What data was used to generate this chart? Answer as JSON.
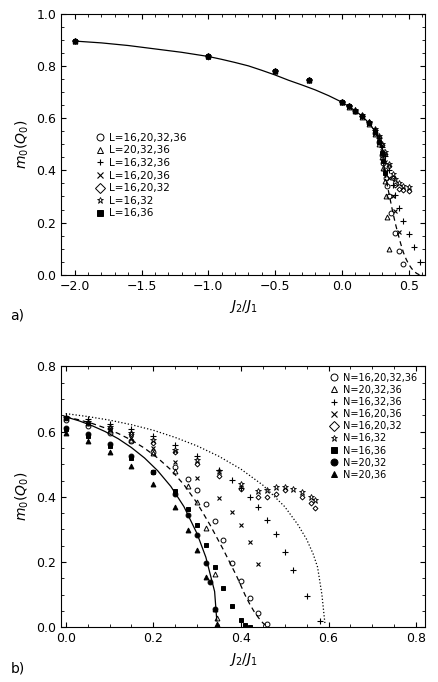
{
  "panel_a": {
    "xlabel": "J_2/J_1",
    "ylabel": "m_0(Q_0)",
    "xlim": [
      -2.1,
      0.62
    ],
    "ylim": [
      0.0,
      1.0
    ],
    "xticks": [
      -2.0,
      -1.5,
      -1.0,
      -0.5,
      0.0,
      0.5
    ],
    "yticks": [
      0.0,
      0.2,
      0.4,
      0.6,
      0.8,
      1.0
    ],
    "legend_entries": [
      {
        "label": "L=16,20,32,36",
        "marker": "o",
        "filled": false
      },
      {
        "label": "L=20,32,36",
        "marker": "^",
        "filled": false
      },
      {
        "label": "L=16,32,36",
        "marker": "+",
        "filled": false
      },
      {
        "label": "L=16,20,36",
        "marker": "x",
        "filled": false
      },
      {
        "label": "L=16,20,32",
        "marker": "D",
        "filled": false
      },
      {
        "label": "L=16,32",
        "marker": "*",
        "filled": false
      },
      {
        "label": "L=16,36",
        "marker": "s",
        "filled": true
      }
    ],
    "curve_solid_x": [
      -2.0,
      -1.8,
      -1.6,
      -1.4,
      -1.2,
      -1.0,
      -0.9,
      -0.8,
      -0.7,
      -0.6,
      -0.5,
      -0.4,
      -0.3,
      -0.2,
      -0.1,
      0.0,
      0.05,
      0.1,
      0.15,
      0.2,
      0.25,
      0.28,
      0.3,
      0.32
    ],
    "curve_solid_y": [
      0.895,
      0.888,
      0.878,
      0.865,
      0.852,
      0.836,
      0.825,
      0.813,
      0.8,
      0.783,
      0.765,
      0.745,
      0.727,
      0.708,
      0.686,
      0.661,
      0.645,
      0.628,
      0.608,
      0.582,
      0.548,
      0.515,
      0.48,
      0.39
    ],
    "curve_dashed_x": [
      0.32,
      0.34,
      0.36,
      0.38,
      0.4,
      0.42,
      0.44,
      0.46,
      0.48,
      0.5,
      0.52,
      0.54,
      0.56,
      0.58
    ],
    "curve_dashed_y": [
      0.39,
      0.34,
      0.29,
      0.24,
      0.195,
      0.155,
      0.118,
      0.085,
      0.06,
      0.04,
      0.025,
      0.013,
      0.005,
      0.0
    ],
    "scatter_sets": [
      {
        "marker": "o",
        "filled": false,
        "ms": 3.5,
        "x": [
          -2.0,
          -1.0,
          -0.5,
          -0.25,
          0.0,
          0.05,
          0.1,
          0.15,
          0.2,
          0.25,
          0.28,
          0.3,
          0.31,
          0.32,
          0.33,
          0.34,
          0.35,
          0.37,
          0.4,
          0.43,
          0.46
        ],
        "y": [
          0.895,
          0.836,
          0.78,
          0.745,
          0.662,
          0.645,
          0.627,
          0.607,
          0.58,
          0.543,
          0.508,
          0.46,
          0.43,
          0.4,
          0.37,
          0.34,
          0.3,
          0.235,
          0.16,
          0.09,
          0.04
        ]
      },
      {
        "marker": "^",
        "filled": false,
        "ms": 3.5,
        "x": [
          -2.0,
          -1.0,
          -0.5,
          -0.25,
          0.0,
          0.05,
          0.1,
          0.15,
          0.2,
          0.25,
          0.28,
          0.3,
          0.31,
          0.32,
          0.33,
          0.34,
          0.35
        ],
        "y": [
          0.895,
          0.836,
          0.779,
          0.745,
          0.661,
          0.644,
          0.626,
          0.605,
          0.578,
          0.54,
          0.502,
          0.45,
          0.41,
          0.36,
          0.3,
          0.22,
          0.1
        ]
      },
      {
        "marker": "+",
        "filled": false,
        "ms": 4.5,
        "x": [
          -2.0,
          -1.0,
          -0.5,
          -0.25,
          0.0,
          0.05,
          0.1,
          0.15,
          0.2,
          0.25,
          0.28,
          0.3,
          0.32,
          0.35,
          0.38,
          0.4,
          0.43,
          0.46,
          0.5,
          0.54,
          0.58
        ],
        "y": [
          0.896,
          0.836,
          0.78,
          0.746,
          0.663,
          0.647,
          0.63,
          0.61,
          0.585,
          0.553,
          0.522,
          0.49,
          0.455,
          0.4,
          0.345,
          0.305,
          0.255,
          0.205,
          0.155,
          0.105,
          0.05
        ]
      },
      {
        "marker": "x",
        "filled": false,
        "ms": 3.5,
        "x": [
          -2.0,
          -1.0,
          -0.5,
          -0.25,
          0.0,
          0.05,
          0.1,
          0.15,
          0.2,
          0.25,
          0.28,
          0.3,
          0.32,
          0.35,
          0.38,
          0.4,
          0.43
        ],
        "y": [
          0.894,
          0.835,
          0.779,
          0.745,
          0.661,
          0.645,
          0.627,
          0.607,
          0.58,
          0.545,
          0.512,
          0.474,
          0.432,
          0.37,
          0.3,
          0.245,
          0.165
        ]
      },
      {
        "marker": "D",
        "filled": false,
        "ms": 2.5,
        "x": [
          -2.0,
          -1.0,
          -0.5,
          -0.25,
          0.0,
          0.05,
          0.1,
          0.15,
          0.2,
          0.25,
          0.28,
          0.3,
          0.32,
          0.35,
          0.38,
          0.4,
          0.43,
          0.46,
          0.5
        ],
        "y": [
          0.894,
          0.835,
          0.779,
          0.745,
          0.662,
          0.646,
          0.629,
          0.61,
          0.585,
          0.555,
          0.527,
          0.497,
          0.463,
          0.415,
          0.37,
          0.345,
          0.33,
          0.325,
          0.32
        ]
      },
      {
        "marker": "*",
        "filled": false,
        "ms": 4.5,
        "x": [
          -2.0,
          -1.0,
          -0.5,
          -0.25,
          0.0,
          0.05,
          0.1,
          0.15,
          0.2,
          0.25,
          0.28,
          0.3,
          0.32,
          0.35,
          0.38,
          0.4,
          0.43,
          0.46,
          0.5
        ],
        "y": [
          0.895,
          0.836,
          0.78,
          0.746,
          0.663,
          0.647,
          0.63,
          0.611,
          0.586,
          0.557,
          0.53,
          0.502,
          0.47,
          0.425,
          0.385,
          0.365,
          0.35,
          0.342,
          0.338
        ]
      },
      {
        "marker": "s",
        "filled": true,
        "ms": 3.5,
        "x": [
          -2.0,
          -1.0,
          -0.5,
          -0.25,
          0.0,
          0.05,
          0.1,
          0.15,
          0.2,
          0.25,
          0.28,
          0.3,
          0.31,
          0.32
        ],
        "y": [
          0.895,
          0.836,
          0.78,
          0.745,
          0.662,
          0.645,
          0.628,
          0.608,
          0.581,
          0.546,
          0.51,
          0.466,
          0.435,
          0.39
        ]
      }
    ]
  },
  "panel_b": {
    "xlabel": "J_2/J_1",
    "ylabel": "m_0(Q_0)",
    "xlim": [
      -0.01,
      0.82
    ],
    "ylim": [
      0.0,
      0.8
    ],
    "xticks": [
      0.0,
      0.2,
      0.4,
      0.6,
      0.8
    ],
    "yticks": [
      0.0,
      0.2,
      0.4,
      0.6,
      0.8
    ],
    "legend_entries": [
      {
        "label": "N=16,20,32,36",
        "marker": "o",
        "filled": false
      },
      {
        "label": "N=20,32,36",
        "marker": "^",
        "filled": false
      },
      {
        "label": "N=16,32,36",
        "marker": "+",
        "filled": false
      },
      {
        "label": "N=16,20,36",
        "marker": "x",
        "filled": false
      },
      {
        "label": "N=16,20,32",
        "marker": "D",
        "filled": false
      },
      {
        "label": "N=16,32",
        "marker": "*",
        "filled": false
      },
      {
        "label": "N=16,36",
        "marker": "s",
        "filled": true
      },
      {
        "label": "N=20,32",
        "marker": "o",
        "filled": true
      },
      {
        "label": "N=20,36",
        "marker": "^",
        "filled": true
      }
    ],
    "curve_solid_x": [
      0.0,
      0.03,
      0.06,
      0.09,
      0.12,
      0.15,
      0.18,
      0.21,
      0.24,
      0.27,
      0.3,
      0.32,
      0.34,
      0.345
    ],
    "curve_solid_y": [
      0.645,
      0.633,
      0.618,
      0.6,
      0.578,
      0.551,
      0.519,
      0.48,
      0.432,
      0.37,
      0.287,
      0.215,
      0.11,
      0.02
    ],
    "curve_dashed_x": [
      0.0,
      0.03,
      0.06,
      0.09,
      0.12,
      0.15,
      0.18,
      0.21,
      0.24,
      0.27,
      0.3,
      0.33,
      0.36,
      0.39,
      0.4,
      0.41,
      0.42,
      0.43,
      0.44,
      0.45,
      0.46
    ],
    "curve_dashed_y": [
      0.645,
      0.636,
      0.625,
      0.611,
      0.594,
      0.574,
      0.549,
      0.519,
      0.483,
      0.437,
      0.381,
      0.313,
      0.238,
      0.158,
      0.128,
      0.098,
      0.072,
      0.049,
      0.03,
      0.014,
      0.003
    ],
    "curve_dotted_x": [
      0.0,
      0.05,
      0.1,
      0.15,
      0.2,
      0.25,
      0.3,
      0.35,
      0.4,
      0.45,
      0.5,
      0.53,
      0.55,
      0.565,
      0.575,
      0.585,
      0.592
    ],
    "curve_dotted_y": [
      0.655,
      0.646,
      0.635,
      0.621,
      0.604,
      0.582,
      0.556,
      0.524,
      0.485,
      0.436,
      0.37,
      0.315,
      0.27,
      0.225,
      0.185,
      0.1,
      0.01
    ],
    "scatter_sets": [
      {
        "marker": "o",
        "filled": false,
        "ms": 3.5,
        "x": [
          0.0,
          0.05,
          0.1,
          0.15,
          0.2,
          0.25,
          0.28,
          0.3,
          0.32,
          0.34,
          0.36,
          0.38,
          0.4,
          0.42,
          0.44,
          0.46
        ],
        "y": [
          0.635,
          0.618,
          0.597,
          0.57,
          0.536,
          0.492,
          0.456,
          0.42,
          0.378,
          0.327,
          0.268,
          0.198,
          0.142,
          0.09,
          0.043,
          0.01
        ]
      },
      {
        "marker": "^",
        "filled": false,
        "ms": 3.5,
        "x": [
          0.0,
          0.05,
          0.1,
          0.15,
          0.2,
          0.25,
          0.28,
          0.3,
          0.32,
          0.34,
          0.345
        ],
        "y": [
          0.645,
          0.627,
          0.604,
          0.574,
          0.535,
          0.48,
          0.432,
          0.384,
          0.305,
          0.165,
          0.03
        ]
      },
      {
        "marker": "+",
        "filled": false,
        "ms": 4.5,
        "x": [
          0.0,
          0.05,
          0.1,
          0.15,
          0.2,
          0.25,
          0.3,
          0.35,
          0.38,
          0.4,
          0.42,
          0.44,
          0.46,
          0.48,
          0.5,
          0.52,
          0.55,
          0.58
        ],
        "y": [
          0.648,
          0.638,
          0.624,
          0.607,
          0.585,
          0.558,
          0.524,
          0.482,
          0.452,
          0.428,
          0.4,
          0.368,
          0.33,
          0.285,
          0.232,
          0.175,
          0.095,
          0.02
        ]
      },
      {
        "marker": "x",
        "filled": false,
        "ms": 3.5,
        "x": [
          0.0,
          0.05,
          0.1,
          0.15,
          0.2,
          0.25,
          0.3,
          0.35,
          0.38,
          0.4,
          0.42,
          0.44
        ],
        "y": [
          0.64,
          0.625,
          0.606,
          0.581,
          0.549,
          0.508,
          0.458,
          0.396,
          0.353,
          0.314,
          0.263,
          0.195
        ]
      },
      {
        "marker": "D",
        "filled": false,
        "ms": 2.5,
        "x": [
          0.0,
          0.05,
          0.1,
          0.15,
          0.2,
          0.25,
          0.3,
          0.35,
          0.4,
          0.44,
          0.46,
          0.48,
          0.5,
          0.54,
          0.56,
          0.57
        ],
        "y": [
          0.64,
          0.627,
          0.611,
          0.591,
          0.566,
          0.536,
          0.502,
          0.465,
          0.425,
          0.398,
          0.4,
          0.41,
          0.42,
          0.4,
          0.38,
          0.365
        ]
      },
      {
        "marker": "*",
        "filled": false,
        "ms": 4.5,
        "x": [
          0.0,
          0.05,
          0.1,
          0.15,
          0.2,
          0.25,
          0.3,
          0.35,
          0.4,
          0.44,
          0.46,
          0.48,
          0.5,
          0.52,
          0.54,
          0.56,
          0.57
        ],
        "y": [
          0.642,
          0.63,
          0.615,
          0.596,
          0.573,
          0.545,
          0.513,
          0.478,
          0.44,
          0.418,
          0.42,
          0.43,
          0.43,
          0.425,
          0.415,
          0.4,
          0.39
        ]
      },
      {
        "marker": "s",
        "filled": true,
        "ms": 3.5,
        "x": [
          0.0,
          0.05,
          0.1,
          0.15,
          0.2,
          0.25,
          0.28,
          0.3,
          0.32,
          0.34,
          0.36,
          0.38,
          0.4,
          0.41,
          0.42
        ],
        "y": [
          0.608,
          0.585,
          0.556,
          0.52,
          0.475,
          0.418,
          0.364,
          0.315,
          0.253,
          0.185,
          0.122,
          0.065,
          0.022,
          0.008,
          0.001
        ]
      },
      {
        "marker": "o",
        "filled": true,
        "ms": 3.5,
        "x": [
          0.0,
          0.05,
          0.1,
          0.15,
          0.2,
          0.25,
          0.28,
          0.3,
          0.32,
          0.33,
          0.34
        ],
        "y": [
          0.612,
          0.591,
          0.562,
          0.524,
          0.476,
          0.41,
          0.344,
          0.283,
          0.198,
          0.138,
          0.055
        ]
      },
      {
        "marker": "^",
        "filled": true,
        "ms": 3.5,
        "x": [
          0.0,
          0.05,
          0.1,
          0.15,
          0.2,
          0.25,
          0.28,
          0.3,
          0.32,
          0.34,
          0.345
        ],
        "y": [
          0.596,
          0.57,
          0.537,
          0.495,
          0.44,
          0.368,
          0.298,
          0.238,
          0.155,
          0.055,
          0.01
        ]
      }
    ]
  },
  "label_a": "a)",
  "label_b": "b)"
}
